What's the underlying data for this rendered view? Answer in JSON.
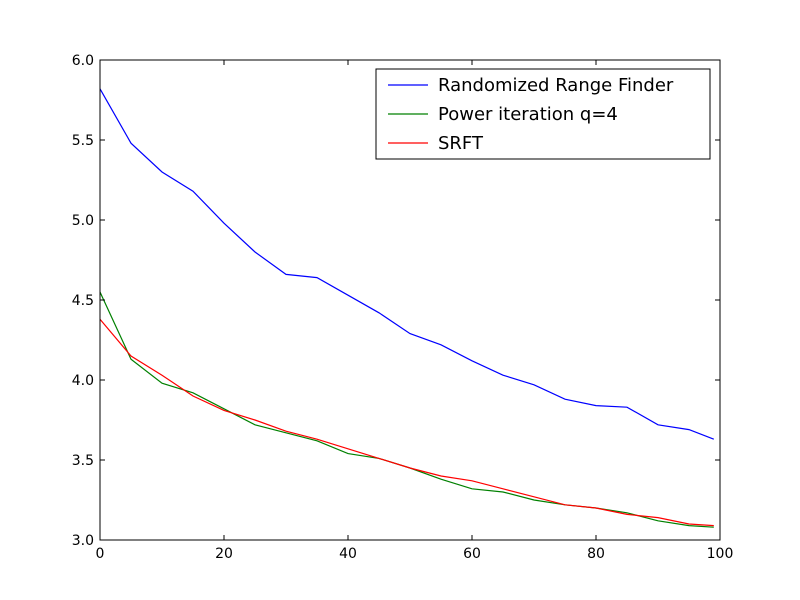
{
  "chart_data": {
    "type": "line",
    "title": "",
    "xlabel": "",
    "ylabel": "",
    "xlim": [
      0,
      100
    ],
    "ylim": [
      3.0,
      6.0
    ],
    "xticks": [
      0,
      20,
      40,
      60,
      80,
      100
    ],
    "yticks": [
      3.0,
      3.5,
      4.0,
      4.5,
      5.0,
      5.5,
      6.0
    ],
    "xtick_labels": [
      "0",
      "20",
      "40",
      "60",
      "80",
      "100"
    ],
    "ytick_labels": [
      "3.0",
      "3.5",
      "4.0",
      "4.5",
      "5.0",
      "5.5",
      "6.0"
    ],
    "grid": false,
    "legend": "top-right",
    "x": [
      0,
      5,
      10,
      15,
      20,
      25,
      30,
      35,
      40,
      45,
      50,
      55,
      60,
      65,
      70,
      75,
      80,
      85,
      90,
      95,
      99
    ],
    "series": [
      {
        "name": "Randomized Range Finder",
        "color": "#0000ff",
        "values": [
          5.82,
          5.48,
          5.3,
          5.18,
          4.98,
          4.8,
          4.66,
          4.64,
          4.53,
          4.42,
          4.29,
          4.22,
          4.12,
          4.03,
          3.97,
          3.88,
          3.84,
          3.83,
          3.72,
          3.69,
          3.63
        ]
      },
      {
        "name": "Power iteration q=4",
        "color": "#008000",
        "values": [
          4.55,
          4.13,
          3.98,
          3.92,
          3.82,
          3.72,
          3.67,
          3.62,
          3.54,
          3.51,
          3.45,
          3.38,
          3.32,
          3.3,
          3.25,
          3.22,
          3.2,
          3.17,
          3.12,
          3.09,
          3.08
        ]
      },
      {
        "name": "SRFT",
        "color": "#ff0000",
        "values": [
          4.38,
          4.15,
          4.03,
          3.9,
          3.81,
          3.75,
          3.68,
          3.63,
          3.57,
          3.51,
          3.45,
          3.4,
          3.37,
          3.32,
          3.27,
          3.22,
          3.2,
          3.16,
          3.14,
          3.1,
          3.09
        ]
      }
    ]
  }
}
